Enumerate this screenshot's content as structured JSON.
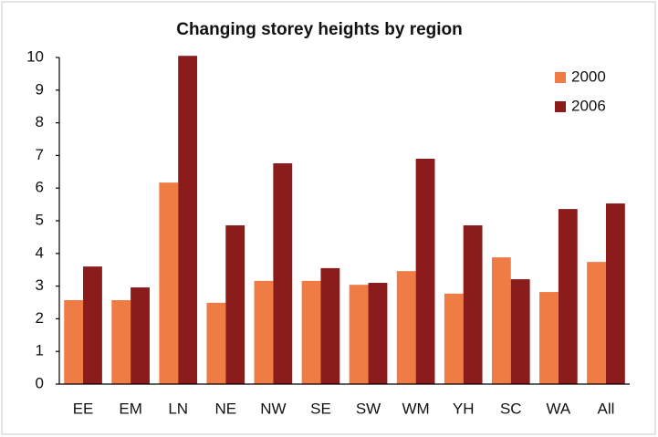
{
  "chart_data": {
    "type": "bar",
    "title": "Changing storey heights by region",
    "categories": [
      "EE",
      "EM",
      "LN",
      "NE",
      "NW",
      "SE",
      "SW",
      "WM",
      "YH",
      "SC",
      "WA",
      "All"
    ],
    "series": [
      {
        "name": "2000",
        "color": "#f07c45",
        "values": [
          2.57,
          2.57,
          6.17,
          2.49,
          3.16,
          3.16,
          3.04,
          3.46,
          2.77,
          3.88,
          2.82,
          3.74
        ]
      },
      {
        "name": "2006",
        "color": "#8c1c1c",
        "values": [
          3.6,
          2.96,
          10.05,
          4.86,
          6.76,
          3.55,
          3.1,
          6.9,
          4.86,
          3.21,
          5.36,
          5.53
        ]
      }
    ],
    "ylim": [
      0,
      10
    ],
    "yticks": [
      0,
      1,
      2,
      3,
      4,
      5,
      6,
      7,
      8,
      9,
      10
    ],
    "grid": false,
    "legend": "top-right"
  }
}
